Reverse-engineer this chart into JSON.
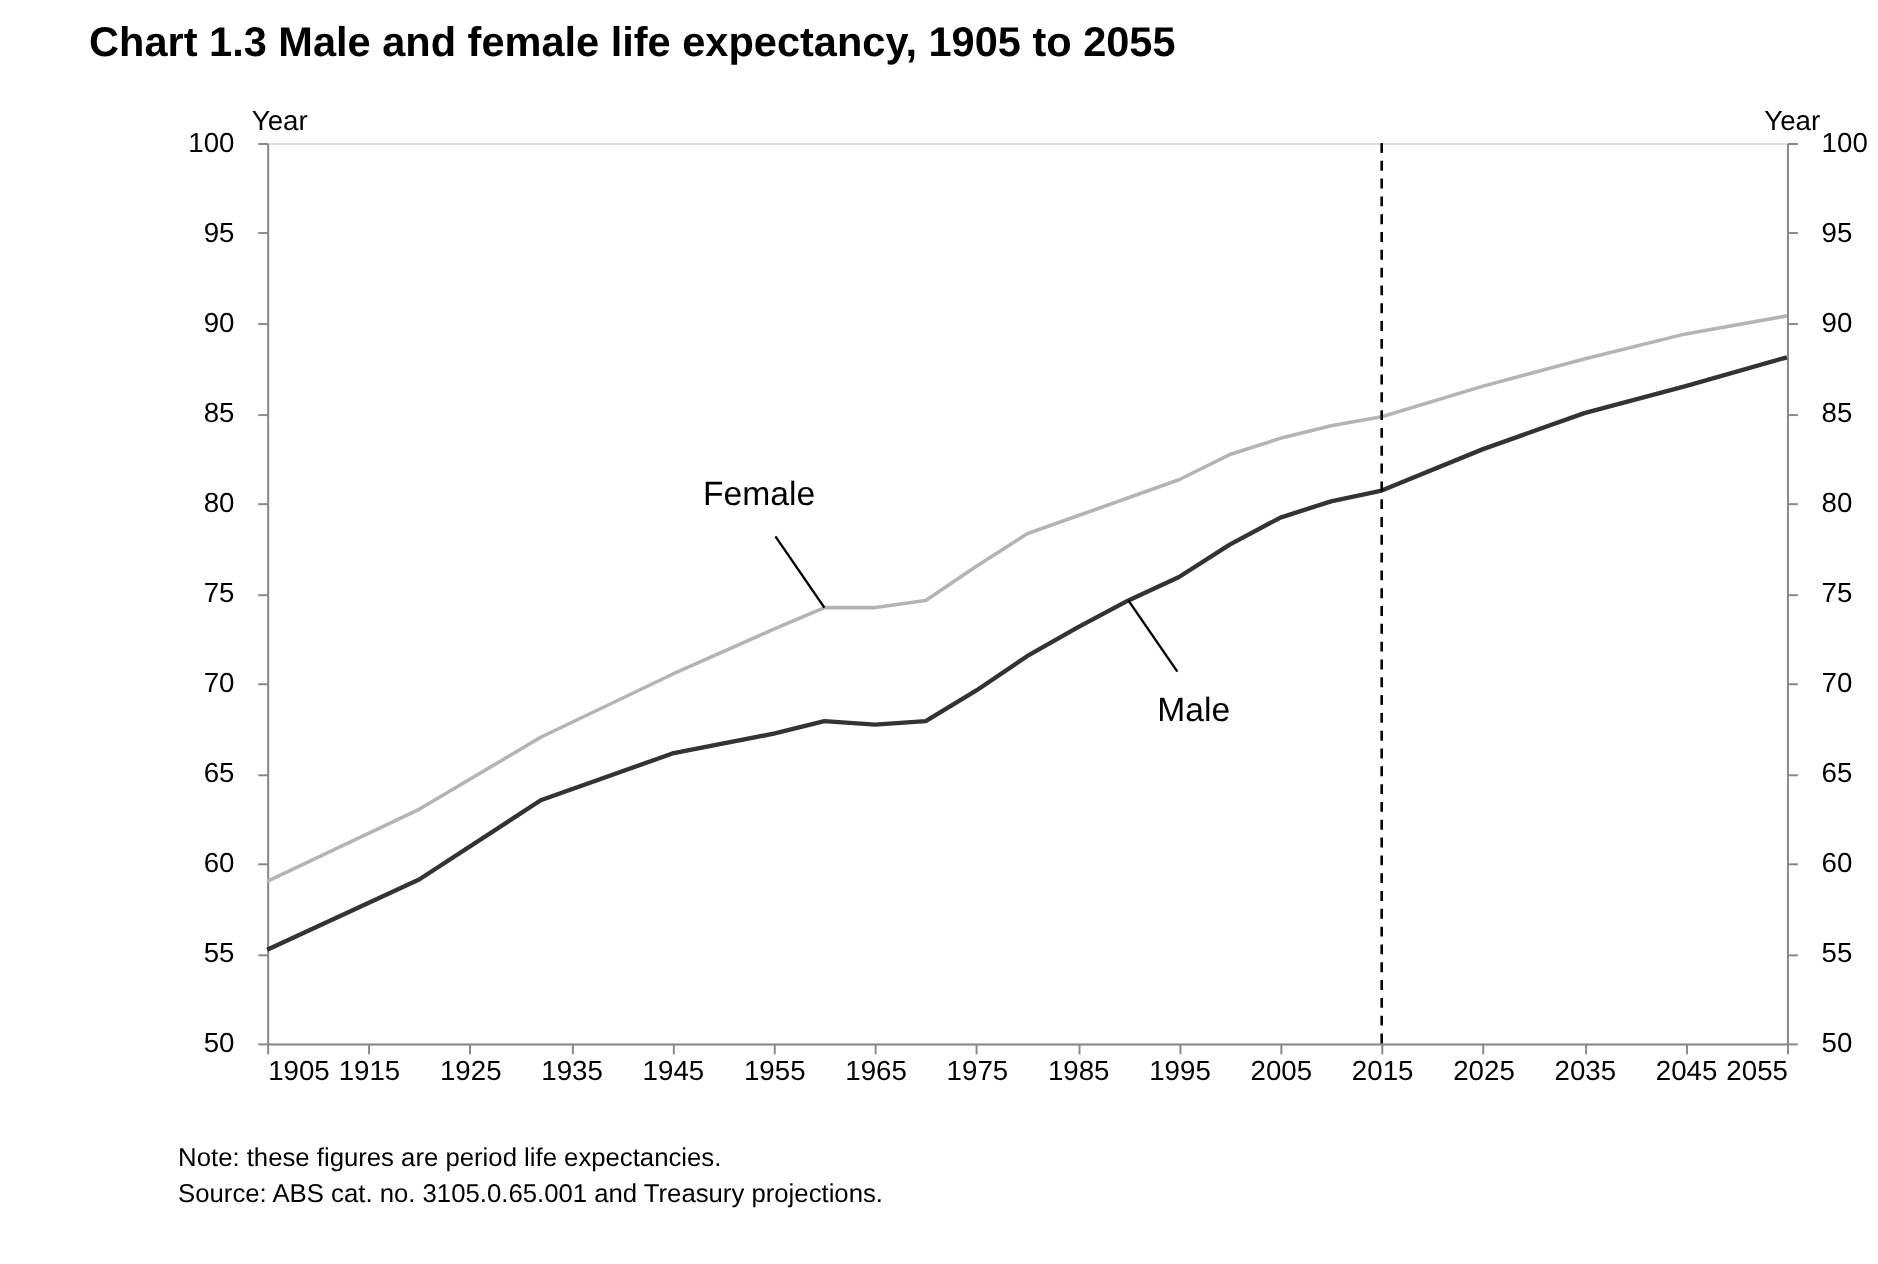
{
  "chart_data": {
    "type": "line",
    "title": "Chart 1.3     Male and female life expectancy, 1905 to 2055",
    "ylabel": "Year",
    "y2label": "Year",
    "x": [
      1905,
      1920,
      1932,
      1945,
      1955,
      1960,
      1965,
      1970,
      1975,
      1980,
      1985,
      1990,
      1995,
      2000,
      2005,
      2010,
      2015,
      2025,
      2035,
      2045,
      2055
    ],
    "series": [
      {
        "color": "#b4b4b4",
        "values": [
          59.0,
          63.0,
          67.0,
          70.5,
          73.0,
          74.2,
          74.2,
          74.6,
          76.5,
          78.3,
          79.3,
          80.3,
          81.3,
          82.7,
          83.6,
          84.3,
          84.8,
          86.5,
          88.0,
          89.4,
          90.4
        ]
      },
      {
        "color": "#333333",
        "values": [
          55.2,
          59.1,
          63.5,
          66.1,
          67.2,
          67.9,
          67.7,
          67.9,
          69.6,
          71.5,
          73.1,
          74.6,
          75.9,
          77.7,
          79.2,
          80.1,
          80.7,
          83.0,
          85.0,
          86.5,
          88.1
        ]
      }
    ],
    "xlim": [
      1905,
      2055
    ],
    "xticks": [
      1905,
      1915,
      1925,
      1935,
      1945,
      1955,
      1965,
      1975,
      1985,
      1995,
      2005,
      2015,
      2025,
      2035,
      2045,
      2055
    ],
    "ylim": [
      50,
      100
    ],
    "yticks": [
      50,
      55,
      60,
      65,
      70,
      75,
      80,
      85,
      90,
      95,
      100
    ],
    "y2lim": [
      50,
      100
    ],
    "y2ticks": [
      50,
      55,
      60,
      65,
      70,
      75,
      80,
      85,
      90,
      95,
      100
    ],
    "ref_lines": [
      {
        "axis": "x",
        "value": 2015,
        "color": "#000000",
        "line_style": "dashed"
      }
    ],
    "grid": false,
    "marker": "none",
    "line_style": "solid",
    "annotations": [
      {
        "text": "Female",
        "x": 1960,
        "y": 74.2
      },
      {
        "text": "Male",
        "x": 1990,
        "y": 74.6
      },
      "Note: these figures are period life expectancies.",
      "Source: ABS cat. no. 3105.0.65.001 and Treasury projections."
    ]
  }
}
